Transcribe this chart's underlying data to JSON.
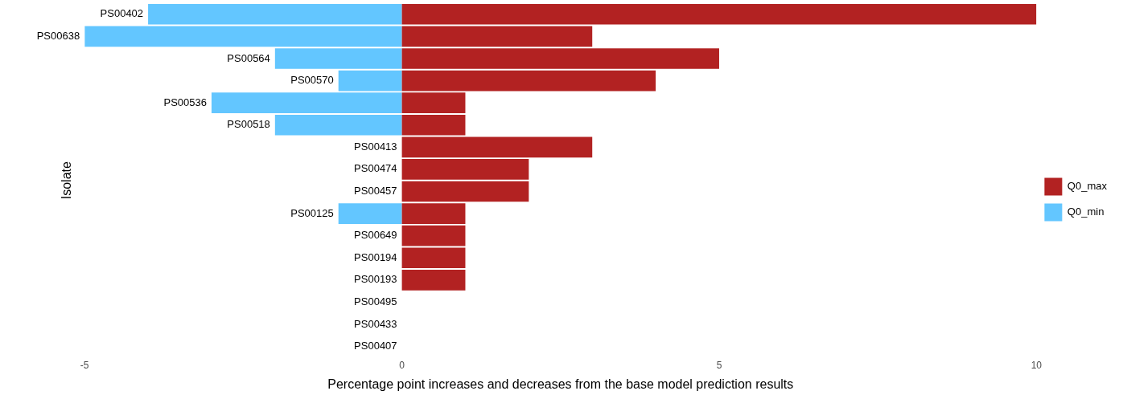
{
  "chart_data": {
    "type": "bar",
    "orientation": "horizontal",
    "stacked": true,
    "xlabel": "Percentage point increases and decreases from the base model prediction results",
    "ylabel": "Isolate",
    "categories": [
      "PS00402",
      "PS00638",
      "PS00564",
      "PS00570",
      "PS00536",
      "PS00518",
      "PS00413",
      "PS00474",
      "PS00457",
      "PS00125",
      "PS00649",
      "PS00194",
      "PS00193",
      "PS00495",
      "PS00433",
      "PS00407"
    ],
    "series": [
      {
        "name": "Q0_max",
        "color": "#b22222",
        "values": [
          10,
          3,
          5,
          4,
          1,
          1,
          3,
          2,
          2,
          1,
          1,
          1,
          1,
          0,
          0,
          0
        ]
      },
      {
        "name": "Q0_min",
        "color": "#63c6ff",
        "values": [
          -4,
          -5,
          -2,
          -1,
          -3,
          -2,
          0,
          0,
          0,
          -1,
          0,
          0,
          0,
          0,
          0,
          0
        ]
      }
    ],
    "xlim": [
      -5,
      10
    ],
    "xticks": [
      -5,
      0,
      5,
      10
    ],
    "grid": false,
    "legend": "right"
  }
}
